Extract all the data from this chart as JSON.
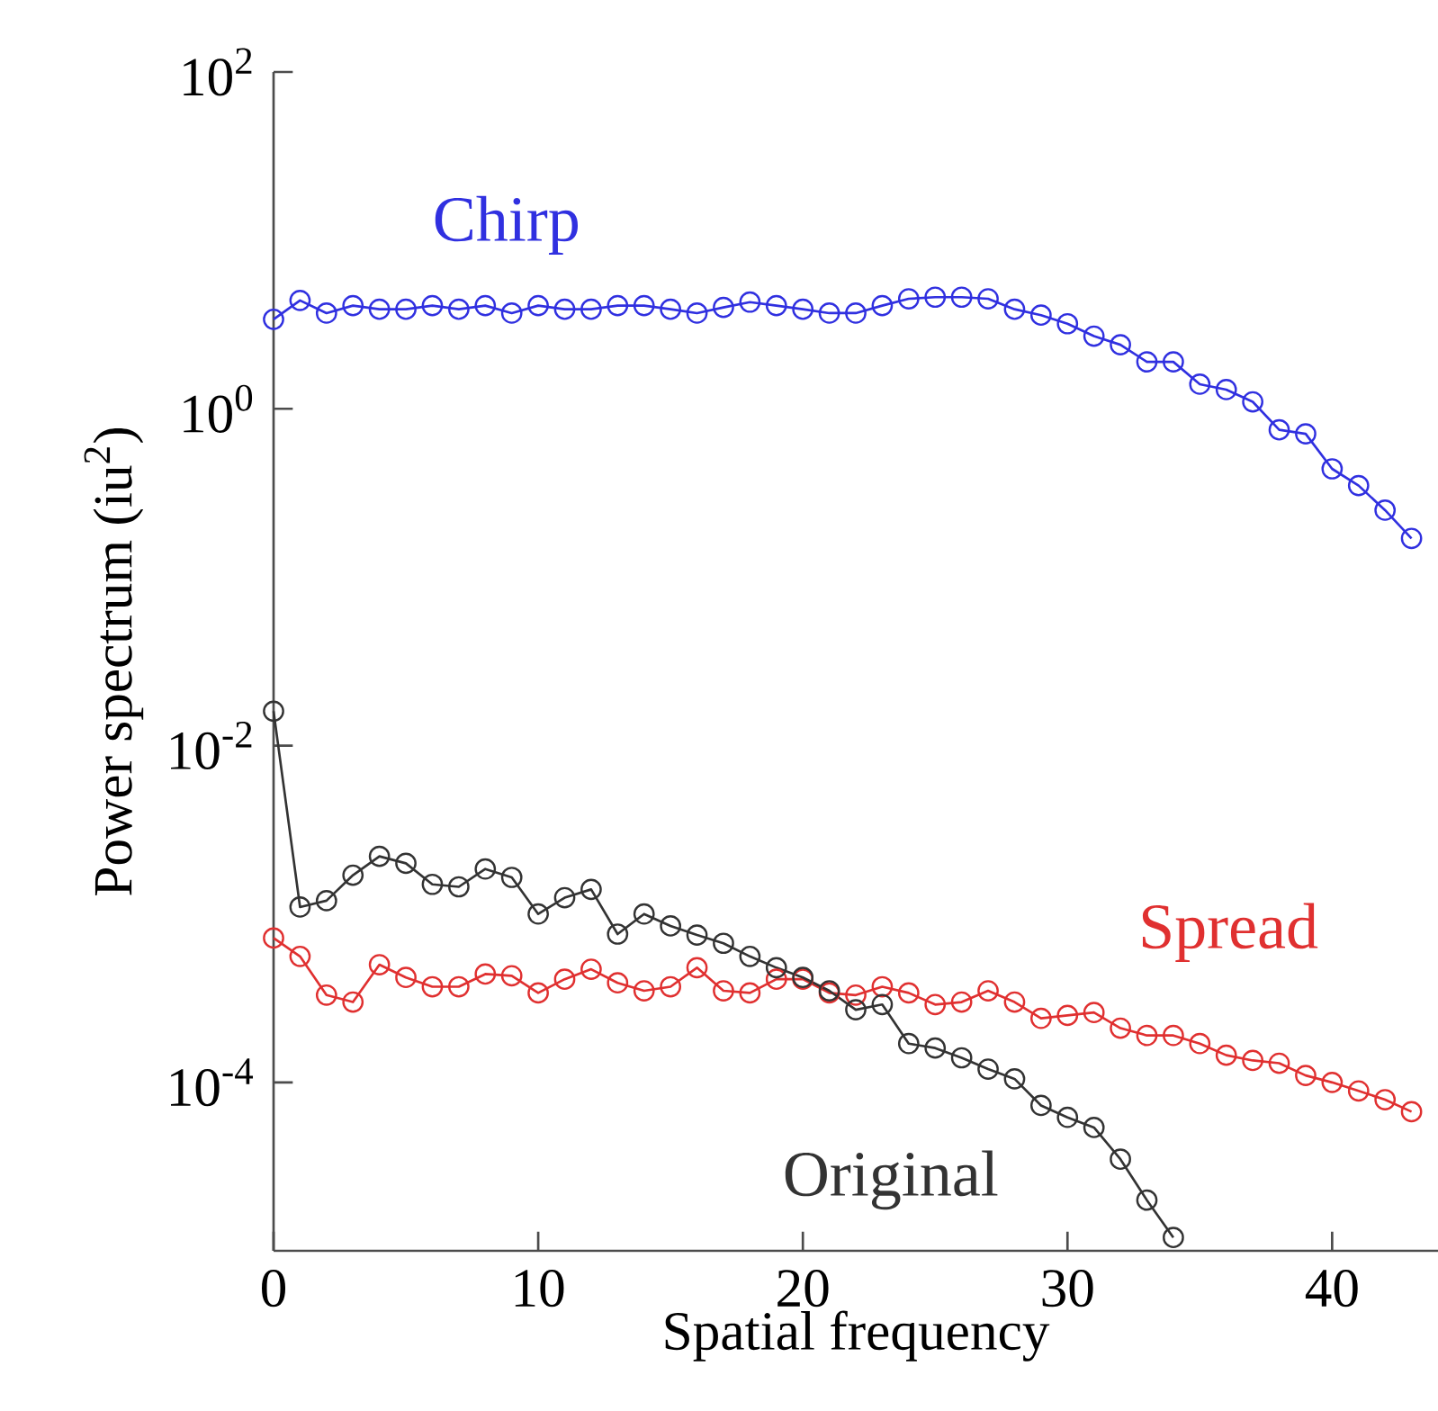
{
  "chart_data": {
    "type": "line",
    "xlabel": "Spatial frequency",
    "ylabel": "Power spectrum (iu$^{2}$)",
    "log": "y",
    "grid": false,
    "legend": false,
    "marker": "circle",
    "line_style": "solid",
    "xlim": [
      0,
      44
    ],
    "xticks": [
      0,
      10,
      20,
      30,
      40
    ],
    "ylim": [
      1e-05,
      100
    ],
    "yticks": [
      {
        "value": 100,
        "label": "10$^{2}$"
      },
      {
        "value": 1,
        "label": "10$^{0}$"
      },
      {
        "value": 0.01,
        "label": "10$^{-2}$"
      },
      {
        "value": 0.0001,
        "label": "10$^{-4}$"
      }
    ],
    "series": [
      {
        "name": "Chirp",
        "color": "#3030e0",
        "x": [
          0,
          1,
          2,
          3,
          4,
          5,
          6,
          7,
          8,
          9,
          10,
          11,
          12,
          13,
          14,
          15,
          16,
          17,
          18,
          19,
          20,
          21,
          22,
          23,
          24,
          25,
          26,
          27,
          28,
          29,
          30,
          31,
          32,
          33,
          34,
          35,
          36,
          37,
          38,
          39,
          40,
          41,
          42,
          43
        ],
        "values": [
          3.4,
          4.4,
          3.7,
          4.1,
          3.9,
          3.9,
          4.1,
          3.9,
          4.1,
          3.7,
          4.1,
          3.9,
          3.9,
          4.1,
          4.1,
          3.9,
          3.7,
          4.0,
          4.3,
          4.1,
          3.9,
          3.7,
          3.7,
          4.1,
          4.5,
          4.6,
          4.6,
          4.5,
          3.9,
          3.6,
          3.2,
          2.7,
          2.4,
          1.9,
          1.9,
          1.4,
          1.3,
          1.1,
          0.75,
          0.71,
          0.44,
          0.35,
          0.25,
          0.17
        ]
      },
      {
        "name": "Spread",
        "color": "#e03030",
        "x": [
          0,
          1,
          2,
          3,
          4,
          5,
          6,
          7,
          8,
          9,
          10,
          11,
          12,
          13,
          14,
          15,
          16,
          17,
          18,
          19,
          20,
          21,
          22,
          23,
          24,
          25,
          26,
          27,
          28,
          29,
          30,
          31,
          32,
          33,
          34,
          35,
          36,
          37,
          38,
          39,
          40,
          41,
          42,
          43
        ],
        "values": [
          0.00072,
          0.00056,
          0.00033,
          0.0003,
          0.0005,
          0.00042,
          0.00037,
          0.00037,
          0.00044,
          0.00043,
          0.00034,
          0.00041,
          0.00047,
          0.00039,
          0.00035,
          0.00037,
          0.00048,
          0.00035,
          0.00034,
          0.00041,
          0.00041,
          0.00034,
          0.00033,
          0.00037,
          0.00034,
          0.00029,
          0.0003,
          0.00035,
          0.0003,
          0.00024,
          0.00025,
          0.00026,
          0.00021,
          0.00019,
          0.00019,
          0.00017,
          0.000145,
          0.000135,
          0.00013,
          0.00011,
          0.0001,
          8.9e-05,
          7.9e-05,
          6.7e-05
        ]
      },
      {
        "name": "Original",
        "color": "#333333",
        "x": [
          0,
          1,
          2,
          3,
          4,
          5,
          6,
          7,
          8,
          9,
          10,
          11,
          12,
          13,
          14,
          15,
          16,
          17,
          18,
          19,
          20,
          21,
          22,
          23,
          24,
          25,
          26,
          27,
          28,
          29,
          30,
          31,
          32,
          33,
          34
        ],
        "values": [
          0.016,
          0.0011,
          0.0012,
          0.0017,
          0.0022,
          0.002,
          0.0015,
          0.00145,
          0.00185,
          0.00165,
          0.001,
          0.00125,
          0.0014,
          0.00076,
          0.001,
          0.00085,
          0.00075,
          0.00067,
          0.00056,
          0.00048,
          0.00042,
          0.00035,
          0.00027,
          0.00029,
          0.00017,
          0.00016,
          0.00014,
          0.00012,
          0.000105,
          7.3e-05,
          6.2e-05,
          5.4e-05,
          3.5e-05,
          2e-05,
          1.2e-05
        ]
      }
    ]
  }
}
